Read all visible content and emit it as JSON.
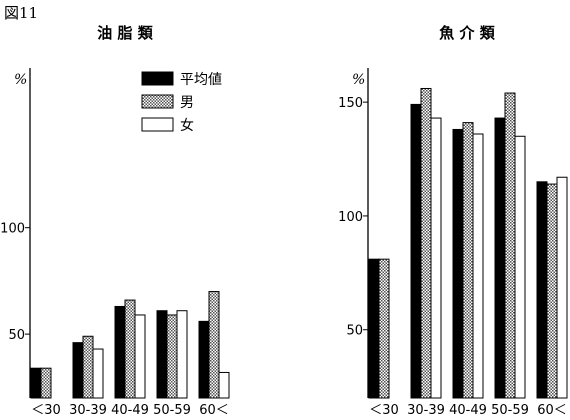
{
  "figure_label": "図11",
  "legend": [
    {
      "name": "平均値",
      "style": "solid"
    },
    {
      "name": "男",
      "style": "hatched"
    },
    {
      "name": "女",
      "style": "white"
    }
  ],
  "chart_data": [
    {
      "type": "bar",
      "title": "油 脂 類",
      "unit_label": "%",
      "categories": [
        "<30",
        "30-39",
        "40-49",
        "50-59",
        "60<"
      ],
      "category_labels": [
        "＜30",
        "30-39",
        "40-49",
        "50-59",
        "60＜"
      ],
      "ylim": [
        20,
        175
      ],
      "yticks": [
        50,
        100
      ],
      "series": [
        {
          "name": "平均値",
          "values": [
            34,
            46,
            63,
            61,
            56
          ]
        },
        {
          "name": "男",
          "values": [
            34,
            49,
            66,
            59,
            70
          ]
        },
        {
          "name": "女",
          "values": [
            null,
            43,
            59,
            61,
            32
          ]
        }
      ]
    },
    {
      "type": "bar",
      "title": "魚 介 類",
      "unit_label": "%",
      "categories": [
        "<30",
        "30-39",
        "40-49",
        "50-59",
        "60<"
      ],
      "category_labels": [
        "＜30",
        "30-39",
        "40-49",
        "50-59",
        "60＜"
      ],
      "ylim": [
        20,
        165
      ],
      "yticks": [
        50,
        100,
        150
      ],
      "series": [
        {
          "name": "平均値",
          "values": [
            81,
            149,
            138,
            143,
            115
          ]
        },
        {
          "name": "男",
          "values": [
            81,
            156,
            141,
            154,
            114
          ]
        },
        {
          "name": "女",
          "values": [
            null,
            143,
            136,
            135,
            117
          ]
        }
      ]
    }
  ]
}
